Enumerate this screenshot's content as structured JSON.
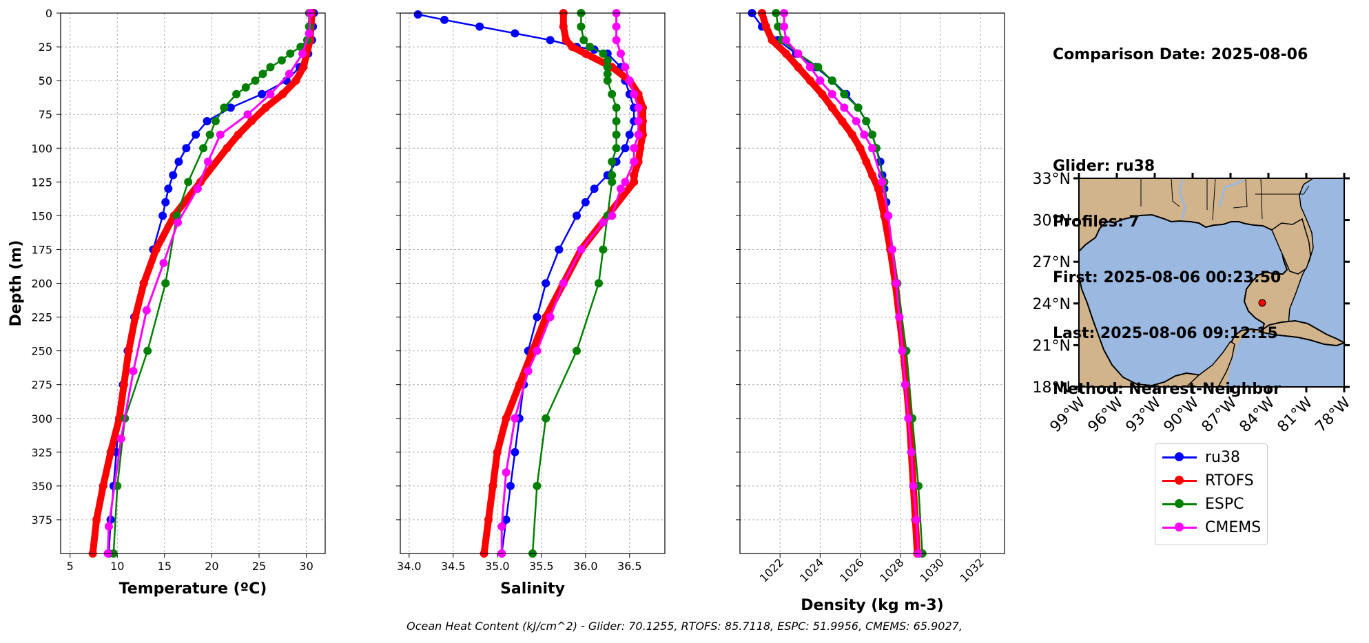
{
  "info": {
    "comparison": "Comparison Date: 2025-08-06",
    "glider": "Glider: ru38",
    "profiles": "Profiles: 7",
    "first": "First: 2025-08-06 00:23:50",
    "last": "Last: 2025-08-06 09:12:15",
    "method": "Method: Nearest-Neighbor"
  },
  "footer": "Ocean Heat Content (kJ/cm^2) - Glider: 70.1255,  RTOFS: 85.7118,  ESPC: 51.9956,  CMEMS: 65.9027,",
  "colors": {
    "ru38": "#0000ff",
    "ru38_raw": "#00ffff",
    "rtofs": "#ff0000",
    "espc": "#008000",
    "cmems": "#ff00ff",
    "land": "#d2b48c",
    "ocean": "#9ab8e0",
    "grid": "#b0b0b0"
  },
  "legend": [
    {
      "name": "ru38",
      "color": "#0000ff"
    },
    {
      "name": "RTOFS",
      "color": "#ff0000"
    },
    {
      "name": "ESPC",
      "color": "#008000"
    },
    {
      "name": "CMEMS",
      "color": "#ff00ff"
    }
  ],
  "chart_data": [
    {
      "type": "line",
      "id": "temperature",
      "xlabel": "Temperature (ºC)",
      "ylabel": "Depth (m)",
      "xlim": [
        4,
        32
      ],
      "ylim": [
        400,
        0
      ],
      "xticks": [
        5,
        10,
        15,
        20,
        25,
        30
      ],
      "yticks": [
        0,
        25,
        50,
        75,
        100,
        125,
        150,
        175,
        200,
        225,
        250,
        275,
        300,
        325,
        350,
        375
      ],
      "grid": true,
      "series": [
        {
          "name": "ru38",
          "depth": [
            0,
            10,
            20,
            30,
            40,
            50,
            60,
            70,
            80,
            90,
            100,
            110,
            120,
            130,
            140,
            150,
            175,
            200,
            225,
            250,
            275,
            300,
            325,
            350,
            375,
            400
          ],
          "values": [
            30.8,
            30.7,
            30.6,
            30.2,
            29.3,
            27.9,
            25.3,
            22.0,
            19.5,
            18.3,
            17.3,
            16.5,
            15.9,
            15.4,
            15.1,
            14.8,
            13.8,
            12.8,
            11.8,
            11.1,
            10.6,
            10.2,
            9.9,
            9.6,
            9.3,
            9.1
          ]
        },
        {
          "name": "RTOFS",
          "depth": [
            0,
            20,
            40,
            50,
            60,
            70,
            80,
            90,
            100,
            125,
            150,
            175,
            200,
            225,
            250,
            275,
            300,
            325,
            350,
            375,
            400
          ],
          "values": [
            30.6,
            30.4,
            29.7,
            28.9,
            27.5,
            25.7,
            24.2,
            22.8,
            21.6,
            18.8,
            16.0,
            14.1,
            12.8,
            11.9,
            11.2,
            10.7,
            10.2,
            9.3,
            8.5,
            7.8,
            7.4
          ]
        },
        {
          "name": "ESPC",
          "depth": [
            0,
            10,
            20,
            25,
            30,
            35,
            40,
            45,
            50,
            55,
            60,
            70,
            80,
            90,
            100,
            125,
            150,
            200,
            250,
            300,
            350,
            400
          ],
          "values": [
            30.3,
            30.3,
            30.1,
            29.4,
            28.3,
            27.4,
            26.2,
            25.4,
            24.6,
            23.6,
            22.6,
            21.3,
            20.4,
            19.8,
            19.1,
            17.5,
            16.3,
            15.1,
            13.2,
            10.8,
            10.0,
            9.6
          ]
        },
        {
          "name": "CMEMS",
          "depth": [
            0,
            15,
            30,
            45,
            60,
            75,
            90,
            110,
            130,
            155,
            185,
            220,
            265,
            315,
            380,
            400
          ],
          "values": [
            30.4,
            30.3,
            29.6,
            28.2,
            26.2,
            23.8,
            20.9,
            19.6,
            18.5,
            16.4,
            14.9,
            13.1,
            11.7,
            10.4,
            9.1,
            9.0
          ]
        }
      ]
    },
    {
      "type": "line",
      "id": "salinity",
      "xlabel": "Salinity",
      "ylabel": "",
      "xlim": [
        33.9,
        36.9
      ],
      "ylim": [
        400,
        0
      ],
      "xticks": [
        34.0,
        34.5,
        35.0,
        35.5,
        36.0,
        36.5
      ],
      "xtick_labels": [
        "34.0",
        "34.5",
        "35.0",
        "35.5",
        "36.0",
        "36.5"
      ],
      "grid": true,
      "series": [
        {
          "name": "ru38",
          "depth": [
            1,
            5,
            10,
            15,
            20,
            25,
            27,
            30,
            40,
            50,
            60,
            70,
            80,
            90,
            100,
            110,
            120,
            130,
            140,
            150,
            175,
            200,
            225,
            250,
            275,
            300,
            325,
            350,
            375,
            400
          ],
          "values": [
            34.1,
            34.4,
            34.8,
            35.2,
            35.6,
            35.9,
            36.1,
            36.25,
            36.4,
            36.45,
            36.5,
            36.55,
            36.55,
            36.5,
            36.45,
            36.35,
            36.25,
            36.1,
            36.0,
            35.9,
            35.7,
            35.55,
            35.45,
            35.35,
            35.3,
            35.25,
            35.2,
            35.15,
            35.1,
            35.05
          ]
        },
        {
          "name": "RTOFS",
          "depth": [
            0,
            10,
            20,
            25,
            30,
            40,
            50,
            60,
            70,
            80,
            90,
            100,
            110,
            120,
            125,
            150,
            175,
            200,
            225,
            250,
            275,
            300,
            325,
            350,
            375,
            400
          ],
          "values": [
            35.75,
            35.75,
            35.78,
            35.85,
            36.0,
            36.3,
            36.5,
            36.6,
            36.65,
            36.65,
            36.65,
            36.62,
            36.6,
            36.55,
            36.55,
            36.25,
            35.95,
            35.75,
            35.55,
            35.4,
            35.25,
            35.1,
            35.0,
            34.95,
            34.9,
            34.85
          ]
        },
        {
          "name": "ESPC",
          "depth": [
            0,
            10,
            20,
            25,
            30,
            35,
            40,
            45,
            50,
            60,
            70,
            80,
            90,
            100,
            110,
            120,
            125,
            150,
            175,
            200,
            250,
            300,
            350,
            400
          ],
          "values": [
            35.95,
            35.95,
            35.98,
            36.05,
            36.2,
            36.25,
            36.25,
            36.25,
            36.25,
            36.3,
            36.35,
            36.35,
            36.35,
            36.35,
            36.3,
            36.3,
            36.3,
            36.25,
            36.2,
            36.15,
            35.9,
            35.55,
            35.45,
            35.4
          ]
        },
        {
          "name": "CMEMS",
          "depth": [
            0,
            10,
            20,
            30,
            40,
            50,
            60,
            70,
            80,
            90,
            100,
            110,
            125,
            130,
            150,
            155,
            175,
            200,
            225,
            250,
            265,
            300,
            340,
            380,
            400
          ],
          "values": [
            36.35,
            36.35,
            36.35,
            36.4,
            36.45,
            36.5,
            36.55,
            36.6,
            36.6,
            36.6,
            36.55,
            36.55,
            36.45,
            36.4,
            36.3,
            36.2,
            35.95,
            35.75,
            35.6,
            35.45,
            35.35,
            35.2,
            35.1,
            35.05,
            35.05
          ]
        }
      ]
    },
    {
      "type": "line",
      "id": "density",
      "xlabel": "Density (kg m-3)",
      "ylabel": "",
      "xlim": [
        1020.0,
        1033.2
      ],
      "ylim": [
        400,
        0
      ],
      "xticks": [
        1022,
        1024,
        1026,
        1028,
        1030,
        1032
      ],
      "grid": true,
      "series": [
        {
          "name": "ru38",
          "depth": [
            0,
            10,
            20,
            30,
            40,
            50,
            60,
            70,
            80,
            90,
            100,
            110,
            120,
            130,
            140,
            150,
            175,
            200,
            225,
            250,
            275,
            300,
            325,
            350,
            375,
            400
          ],
          "values": [
            1020.6,
            1021.1,
            1021.9,
            1022.8,
            1023.8,
            1024.6,
            1025.3,
            1025.9,
            1026.3,
            1026.6,
            1026.8,
            1027.0,
            1027.1,
            1027.2,
            1027.3,
            1027.35,
            1027.55,
            1027.75,
            1027.95,
            1028.1,
            1028.25,
            1028.4,
            1028.55,
            1028.65,
            1028.8,
            1028.9
          ]
        },
        {
          "name": "RTOFS",
          "depth": [
            0,
            10,
            20,
            30,
            40,
            50,
            60,
            70,
            80,
            90,
            100,
            110,
            120,
            130,
            150,
            175,
            200,
            225,
            250,
            275,
            300,
            325,
            350,
            375,
            400
          ],
          "values": [
            1021.1,
            1021.3,
            1021.6,
            1022.3,
            1022.9,
            1023.5,
            1024.1,
            1024.6,
            1025.1,
            1025.6,
            1026.0,
            1026.3,
            1026.6,
            1026.9,
            1027.2,
            1027.5,
            1027.75,
            1027.95,
            1028.15,
            1028.3,
            1028.45,
            1028.55,
            1028.65,
            1028.75,
            1028.85
          ]
        },
        {
          "name": "ESPC",
          "depth": [
            0,
            10,
            20,
            30,
            40,
            50,
            60,
            70,
            80,
            90,
            100,
            125,
            150,
            200,
            250,
            300,
            350,
            400
          ],
          "values": [
            1021.8,
            1021.9,
            1022.1,
            1022.9,
            1023.9,
            1024.6,
            1025.2,
            1025.9,
            1026.3,
            1026.6,
            1026.8,
            1027.2,
            1027.4,
            1027.85,
            1028.3,
            1028.6,
            1028.9,
            1029.1
          ]
        },
        {
          "name": "CMEMS",
          "depth": [
            0,
            10,
            20,
            30,
            40,
            50,
            60,
            70,
            80,
            90,
            100,
            125,
            150,
            175,
            200,
            225,
            250,
            275,
            300,
            325,
            350,
            375,
            400
          ],
          "values": [
            1022.2,
            1022.2,
            1022.3,
            1022.9,
            1023.5,
            1024.0,
            1024.6,
            1025.2,
            1025.8,
            1026.2,
            1026.6,
            1027.1,
            1027.4,
            1027.6,
            1027.8,
            1027.95,
            1028.1,
            1028.25,
            1028.4,
            1028.55,
            1028.65,
            1028.8,
            1028.9
          ]
        }
      ]
    }
  ],
  "map": {
    "lat_ticks": [
      "33°N",
      "30°N",
      "27°N",
      "24°N",
      "21°N",
      "18°N"
    ],
    "lon_ticks": [
      "99°W",
      "96°W",
      "93°W",
      "90°W",
      "87°W",
      "84°W",
      "81°W",
      "78°W"
    ],
    "lat_range": [
      18,
      33
    ],
    "lon_range": [
      -99,
      -78
    ],
    "glider_position": {
      "lat": 24.3,
      "lon": -84.6
    }
  }
}
